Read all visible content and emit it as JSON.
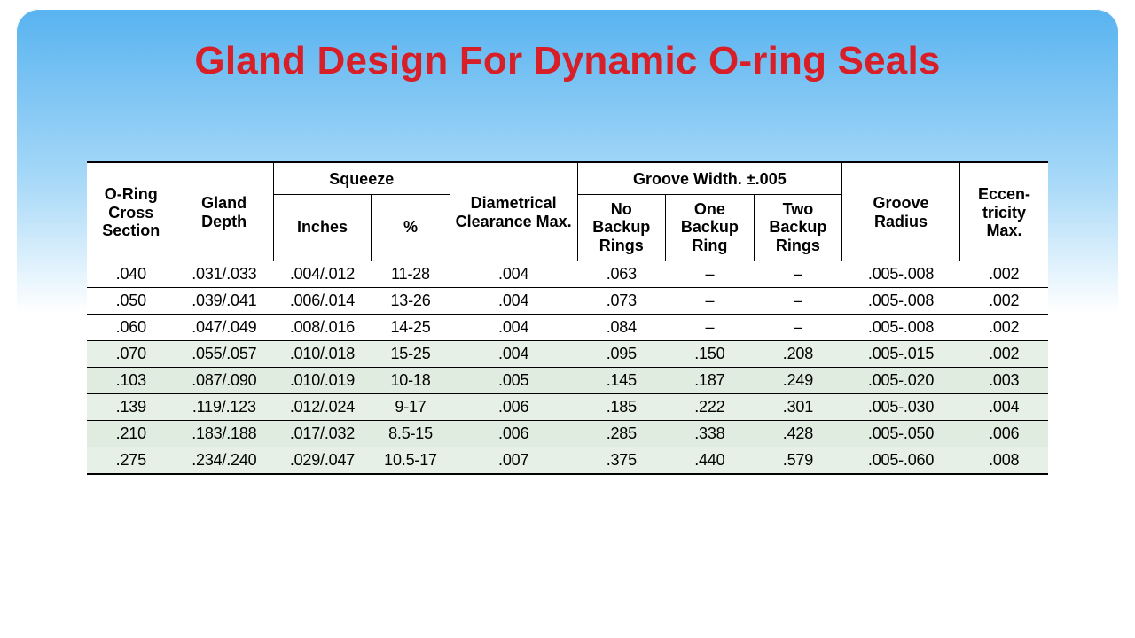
{
  "title": "Gland Design For Dynamic O-ring Seals",
  "colors": {
    "title_color": "#d81e26",
    "bg_top": "#58b3f0",
    "bg_mid": "#a8d9f8",
    "bg_bottom": "#ffffff",
    "row_white": "#ffffff",
    "row_green": "#e0ece0",
    "border": "#000000"
  },
  "table": {
    "group_headers": {
      "squeeze": "Squeeze",
      "groove_width": "Groove Width. ±.005"
    },
    "columns": [
      "O-Ring Cross Section",
      "Gland Depth",
      "Inches",
      "%",
      "Diametrical Clearance Max.",
      "No Backup Rings",
      "One Backup Ring",
      "Two Backup Rings",
      "Groove Radius",
      "Eccen- tricity Max."
    ],
    "col_widths_pct": [
      9,
      10,
      10,
      8,
      13,
      9,
      9,
      9,
      12,
      9
    ],
    "rows": [
      {
        "shade": "white",
        "cells": [
          ".040",
          ".031/.033",
          ".004/.012",
          "11-28",
          ".004",
          ".063",
          "–",
          "–",
          ".005-.008",
          ".002"
        ]
      },
      {
        "shade": "white",
        "cells": [
          ".050",
          ".039/.041",
          ".006/.014",
          "13-26",
          ".004",
          ".073",
          "–",
          "–",
          ".005-.008",
          ".002"
        ]
      },
      {
        "shade": "white",
        "cells": [
          ".060",
          ".047/.049",
          ".008/.016",
          "14-25",
          ".004",
          ".084",
          "–",
          "–",
          ".005-.008",
          ".002"
        ]
      },
      {
        "shade": "green",
        "cells": [
          ".070",
          ".055/.057",
          ".010/.018",
          "15-25",
          ".004",
          ".095",
          ".150",
          ".208",
          ".005-.015",
          ".002"
        ]
      },
      {
        "shade": "green",
        "cells": [
          ".103",
          ".087/.090",
          ".010/.019",
          "10-18",
          ".005",
          ".145",
          ".187",
          ".249",
          ".005-.020",
          ".003"
        ]
      },
      {
        "shade": "green",
        "cells": [
          ".139",
          ".119/.123",
          ".012/.024",
          "9-17",
          ".006",
          ".185",
          ".222",
          ".301",
          ".005-.030",
          ".004"
        ]
      },
      {
        "shade": "green",
        "cells": [
          ".210",
          ".183/.188",
          ".017/.032",
          "8.5-15",
          ".006",
          ".285",
          ".338",
          ".428",
          ".005-.050",
          ".006"
        ]
      },
      {
        "shade": "green",
        "cells": [
          ".275",
          ".234/.240",
          ".029/.047",
          "10.5-17",
          ".007",
          ".375",
          ".440",
          ".579",
          ".005-.060",
          ".008"
        ]
      }
    ]
  }
}
